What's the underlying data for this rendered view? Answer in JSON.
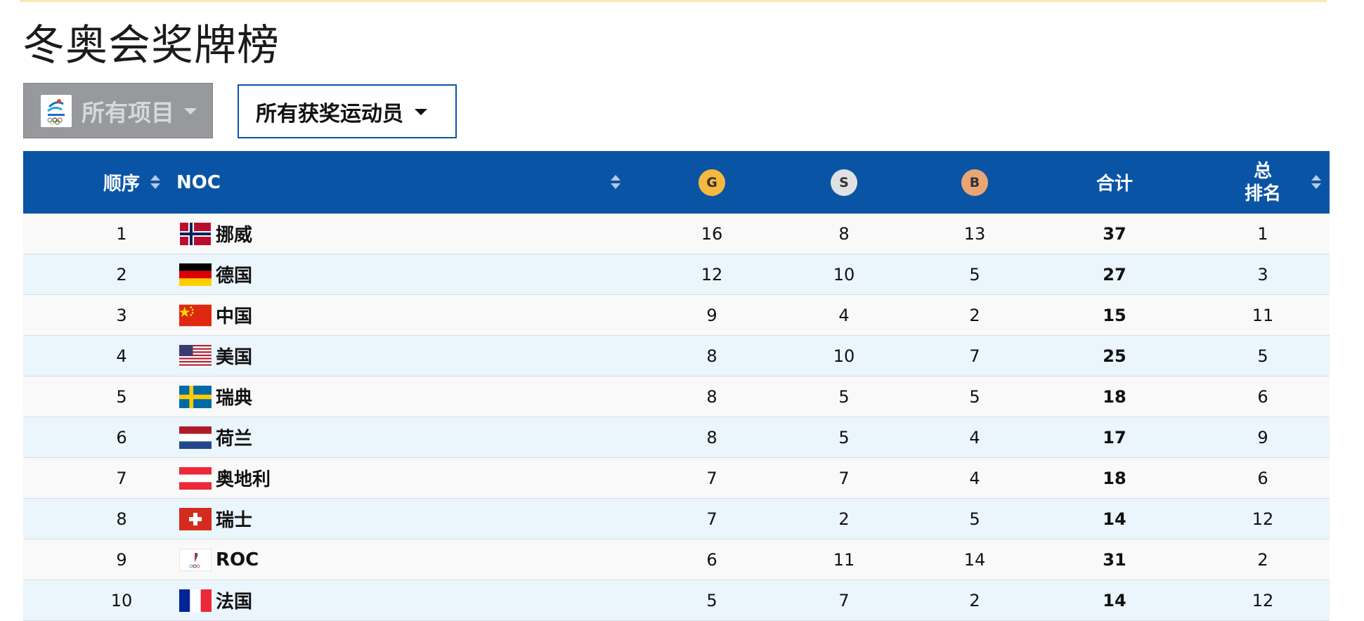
{
  "page": {
    "title": "冬奥会奖牌榜"
  },
  "filters": {
    "events_label": "所有项目",
    "athletes_label": "所有获奖运动员"
  },
  "table": {
    "headers": {
      "order": "顺序",
      "noc": "NOC",
      "gold": "G",
      "silver": "S",
      "bronze": "B",
      "total": "合计",
      "rank_line1": "总",
      "rank_line2": "排名"
    },
    "medal_colors": {
      "gold": "#f5b93f",
      "silver": "#dfe1e4",
      "bronze": "#e9a574"
    },
    "rows": [
      {
        "order": "1",
        "country": "挪威",
        "flag": "norway-flag",
        "gold": "16",
        "silver": "8",
        "bronze": "13",
        "total": "37",
        "rank": "1"
      },
      {
        "order": "2",
        "country": "德国",
        "flag": "germany-flag",
        "gold": "12",
        "silver": "10",
        "bronze": "5",
        "total": "27",
        "rank": "3"
      },
      {
        "order": "3",
        "country": "中国",
        "flag": "china-flag",
        "gold": "9",
        "silver": "4",
        "bronze": "2",
        "total": "15",
        "rank": "11"
      },
      {
        "order": "4",
        "country": "美国",
        "flag": "usa-flag",
        "gold": "8",
        "silver": "10",
        "bronze": "7",
        "total": "25",
        "rank": "5"
      },
      {
        "order": "5",
        "country": "瑞典",
        "flag": "sweden-flag",
        "gold": "8",
        "silver": "5",
        "bronze": "5",
        "total": "18",
        "rank": "6"
      },
      {
        "order": "6",
        "country": "荷兰",
        "flag": "netherlands-flag",
        "gold": "8",
        "silver": "5",
        "bronze": "4",
        "total": "17",
        "rank": "9"
      },
      {
        "order": "7",
        "country": "奥地利",
        "flag": "austria-flag",
        "gold": "7",
        "silver": "7",
        "bronze": "4",
        "total": "18",
        "rank": "6"
      },
      {
        "order": "8",
        "country": "瑞士",
        "flag": "switzerland-flag",
        "gold": "7",
        "silver": "2",
        "bronze": "5",
        "total": "14",
        "rank": "12"
      },
      {
        "order": "9",
        "country": "ROC",
        "flag": "roc-flag",
        "gold": "6",
        "silver": "11",
        "bronze": "14",
        "total": "31",
        "rank": "2"
      },
      {
        "order": "10",
        "country": "法国",
        "flag": "france-flag",
        "gold": "5",
        "silver": "7",
        "bronze": "2",
        "total": "14",
        "rank": "12"
      }
    ]
  }
}
